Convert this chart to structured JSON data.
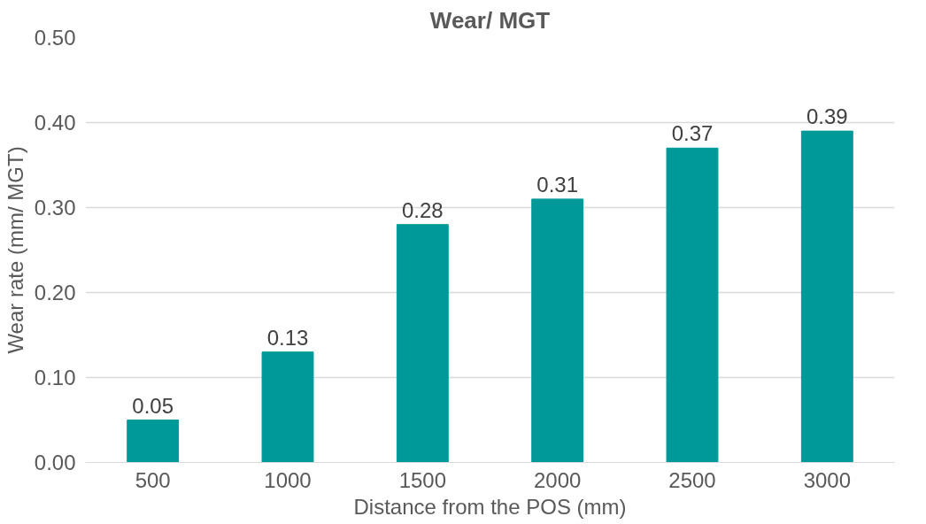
{
  "chart_data": {
    "type": "bar",
    "title": "Wear/ MGT",
    "xlabel": "Distance from the POS (mm)",
    "ylabel": "Wear rate (mm/ MGT)",
    "categories": [
      "500",
      "1000",
      "1500",
      "2000",
      "2500",
      "3000"
    ],
    "values": [
      0.05,
      0.13,
      0.28,
      0.31,
      0.37,
      0.39
    ],
    "color": "#009999",
    "ylim": [
      0,
      0.5
    ],
    "yticks": [
      {
        "value": 0,
        "label": "0.00"
      },
      {
        "value": 0.1,
        "label": "0.10"
      },
      {
        "value": 0.2,
        "label": "0.20"
      },
      {
        "value": 0.3,
        "label": "0.30"
      },
      {
        "value": 0.4,
        "label": "0.40"
      },
      {
        "value": 0.5,
        "label": "0.50"
      }
    ],
    "grid": "y",
    "data_labels": true
  }
}
